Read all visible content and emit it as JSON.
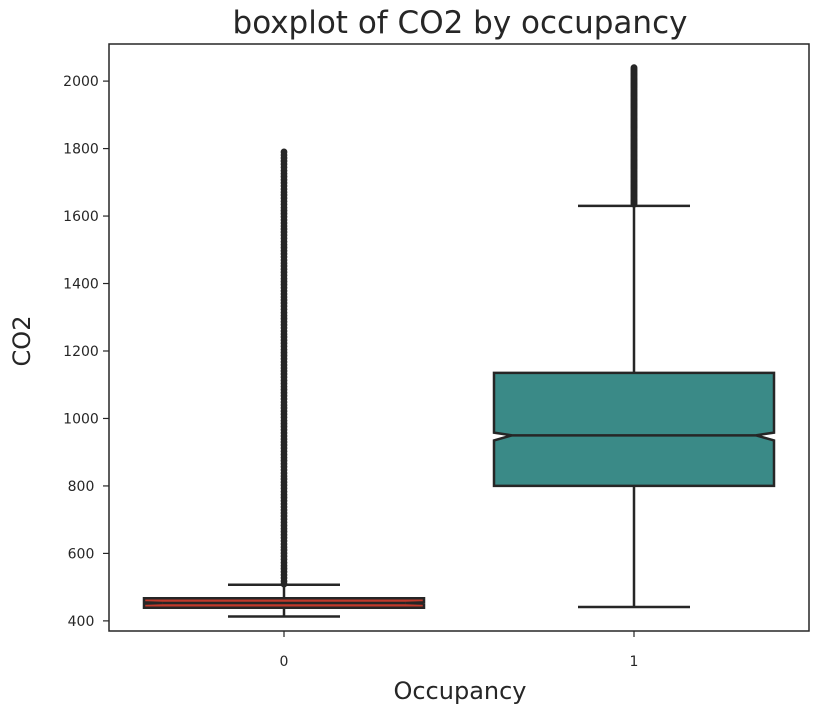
{
  "chart_data": {
    "type": "boxplot",
    "title": "boxplot of CO2 by occupancy",
    "xlabel": "Occupancy",
    "ylabel": "CO2",
    "categories": [
      "0",
      "1"
    ],
    "ylim": [
      370,
      2110
    ],
    "yticks": [
      400,
      600,
      800,
      1000,
      1200,
      1400,
      1600,
      1800,
      2000
    ],
    "grid": false,
    "notched": true,
    "boxes": [
      {
        "category": "0",
        "color": "#c0392b",
        "q1": 439,
        "median": 453,
        "q3": 467,
        "notch_low": 451,
        "notch_high": 455,
        "whisker_low": 413,
        "whisker_high": 507,
        "outliers_range": [
          509,
          1790
        ]
      },
      {
        "category": "1",
        "color": "#3a8a87",
        "q1": 800,
        "median": 950,
        "q3": 1135,
        "notch_low": 935,
        "notch_high": 958,
        "whisker_low": 441,
        "whisker_high": 1630,
        "outliers_range": [
          1635,
          2040
        ]
      }
    ]
  }
}
